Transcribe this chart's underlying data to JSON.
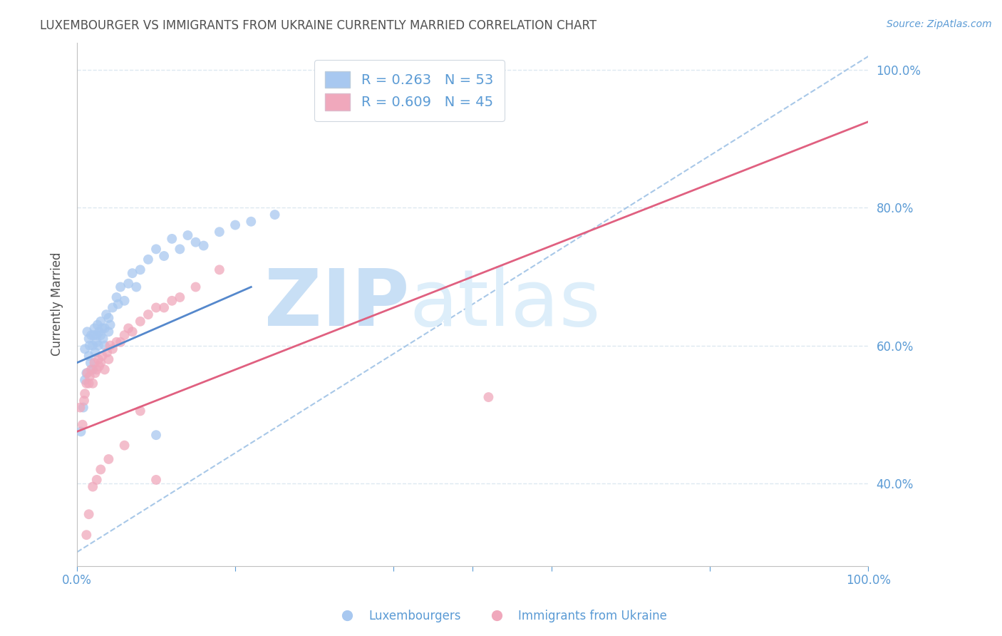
{
  "title": "LUXEMBOURGER VS IMMIGRANTS FROM UKRAINE CURRENTLY MARRIED CORRELATION CHART",
  "source": "Source: ZipAtlas.com",
  "ylabel": "Currently Married",
  "legend_labels": [
    "Luxembourgers",
    "Immigrants from Ukraine"
  ],
  "blue_R": 0.263,
  "blue_N": 53,
  "pink_R": 0.609,
  "pink_N": 45,
  "blue_color": "#a8c8f0",
  "pink_color": "#f0a8bc",
  "blue_line_color": "#5588cc",
  "pink_line_color": "#e06080",
  "dashed_line_color": "#a8c8e8",
  "watermark_zip": "ZIP",
  "watermark_atlas": "atlas",
  "watermark_color": "#ddeeff",
  "title_color": "#505050",
  "axis_color": "#5b9bd5",
  "grid_color": "#dde8f0",
  "xlim": [
    0.0,
    1.0
  ],
  "ylim": [
    0.28,
    1.04
  ],
  "blue_scatter_x": [
    0.005,
    0.008,
    0.01,
    0.01,
    0.012,
    0.013,
    0.015,
    0.015,
    0.016,
    0.017,
    0.018,
    0.02,
    0.02,
    0.021,
    0.022,
    0.023,
    0.025,
    0.025,
    0.026,
    0.027,
    0.028,
    0.03,
    0.03,
    0.032,
    0.033,
    0.035,
    0.035,
    0.037,
    0.04,
    0.04,
    0.042,
    0.045,
    0.05,
    0.052,
    0.055,
    0.06,
    0.065,
    0.07,
    0.075,
    0.08,
    0.09,
    0.1,
    0.11,
    0.12,
    0.13,
    0.14,
    0.15,
    0.16,
    0.18,
    0.2,
    0.22,
    0.25,
    0.1
  ],
  "blue_scatter_y": [
    0.475,
    0.51,
    0.55,
    0.595,
    0.56,
    0.62,
    0.61,
    0.585,
    0.6,
    0.575,
    0.615,
    0.6,
    0.565,
    0.615,
    0.625,
    0.59,
    0.605,
    0.615,
    0.63,
    0.6,
    0.62,
    0.615,
    0.635,
    0.625,
    0.61,
    0.6,
    0.625,
    0.645,
    0.62,
    0.64,
    0.63,
    0.655,
    0.67,
    0.66,
    0.685,
    0.665,
    0.69,
    0.705,
    0.685,
    0.71,
    0.725,
    0.74,
    0.73,
    0.755,
    0.74,
    0.76,
    0.75,
    0.745,
    0.765,
    0.775,
    0.78,
    0.79,
    0.47
  ],
  "pink_scatter_x": [
    0.004,
    0.007,
    0.009,
    0.01,
    0.012,
    0.013,
    0.015,
    0.016,
    0.018,
    0.02,
    0.022,
    0.023,
    0.025,
    0.027,
    0.028,
    0.03,
    0.032,
    0.035,
    0.038,
    0.04,
    0.042,
    0.045,
    0.05,
    0.055,
    0.06,
    0.065,
    0.07,
    0.08,
    0.09,
    0.1,
    0.11,
    0.12,
    0.13,
    0.15,
    0.18,
    0.012,
    0.015,
    0.02,
    0.025,
    0.03,
    0.04,
    0.06,
    0.08,
    0.52,
    0.1
  ],
  "pink_scatter_y": [
    0.51,
    0.485,
    0.52,
    0.53,
    0.545,
    0.56,
    0.545,
    0.555,
    0.565,
    0.545,
    0.575,
    0.56,
    0.565,
    0.58,
    0.57,
    0.575,
    0.585,
    0.565,
    0.59,
    0.58,
    0.6,
    0.595,
    0.605,
    0.605,
    0.615,
    0.625,
    0.62,
    0.635,
    0.645,
    0.655,
    0.655,
    0.665,
    0.67,
    0.685,
    0.71,
    0.325,
    0.355,
    0.395,
    0.405,
    0.42,
    0.435,
    0.455,
    0.505,
    0.525,
    0.405
  ],
  "blue_line_x": [
    0.0,
    0.22
  ],
  "blue_line_y": [
    0.575,
    0.685
  ],
  "pink_line_x": [
    0.0,
    1.0
  ],
  "pink_line_y": [
    0.475,
    0.925
  ],
  "dashed_line_x": [
    0.0,
    1.0
  ],
  "dashed_line_y": [
    0.3,
    1.02
  ],
  "ytick_vals": [
    0.4,
    0.6,
    0.8,
    1.0
  ],
  "ytick_labels": [
    "40.0%",
    "60.0%",
    "80.0%",
    "100.0%"
  ],
  "xtick_vals": [
    0.0,
    0.2,
    0.4,
    0.5,
    0.6,
    0.8,
    1.0
  ],
  "xtick_labels": [
    "0.0%",
    "",
    "",
    "",
    "",
    "",
    "100.0%"
  ],
  "background_color": "#ffffff"
}
